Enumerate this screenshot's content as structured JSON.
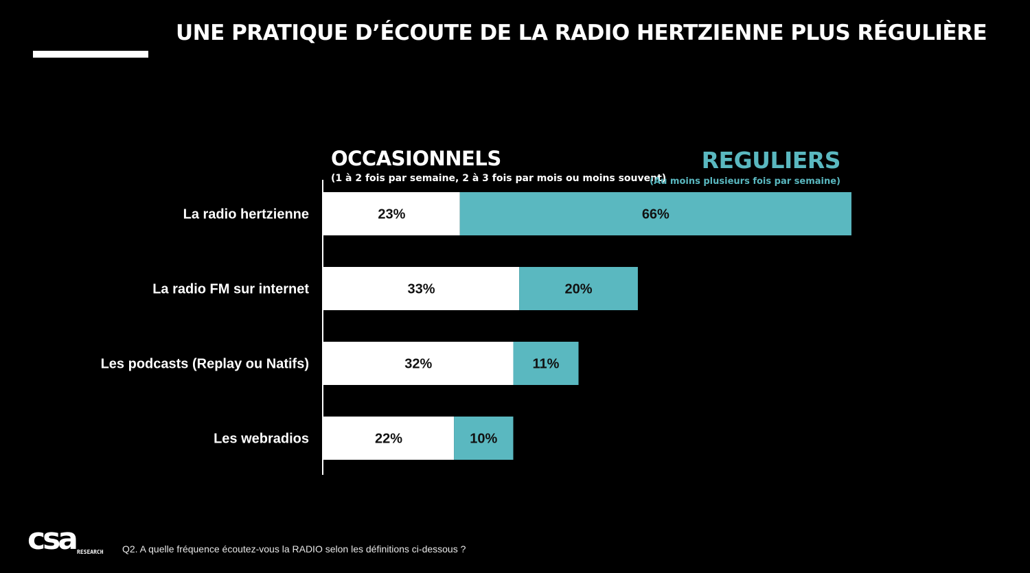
{
  "header": {
    "title": "UNE PRATIQUE D’ÉCOUTE DE LA RADIO HERTZIENNE PLUS RÉGULIÈRE"
  },
  "legend": {
    "occasional_label": "OCCASIONNELS",
    "occasional_sub": "(1 à 2 fois par semaine, 2 à 3 fois par mois ou moins souvent)",
    "regular_label": "REGULIERS",
    "regular_sub": "(Au moins plusieurs fois par semaine)"
  },
  "colors": {
    "background": "#000000",
    "occasional": "#ffffff",
    "regular": "#5ab8c0",
    "regular_text": "#5ab8c0"
  },
  "chart_data": {
    "type": "bar",
    "orientation": "horizontal",
    "stacked": true,
    "categories": [
      "La radio hertzienne",
      "La radio FM sur internet",
      "Les podcasts (Replay ou Natifs)",
      "Les webradios"
    ],
    "series": [
      {
        "name": "OCCASIONNELS",
        "values": [
          23,
          33,
          32,
          22
        ],
        "labels": [
          "23%",
          "33%",
          "32%",
          "22%"
        ]
      },
      {
        "name": "REGULIERS",
        "values": [
          66,
          20,
          11,
          10
        ],
        "labels": [
          "66%",
          "20%",
          "11%",
          "10%"
        ]
      }
    ],
    "unit": "%",
    "xlim": [
      0,
      100
    ],
    "grid": false
  },
  "footer": {
    "question": "Q2. A quelle fréquence écoutez-vous la RADIO selon les définitions ci-dessous ?",
    "logo_text": "csa",
    "logo_sub": "RESEARCH"
  }
}
